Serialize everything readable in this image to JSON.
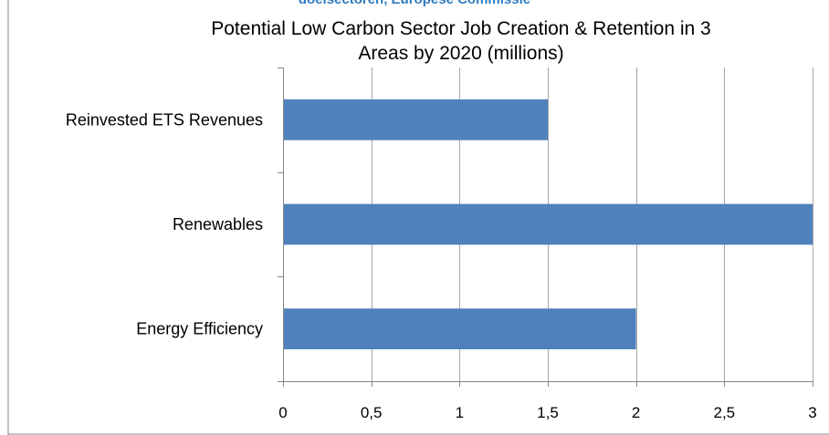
{
  "caption": "doelsectoren, Europese Commissie",
  "chart_data": {
    "type": "bar",
    "orientation": "horizontal",
    "title_lines": [
      "Potential Low Carbon Sector Job Creation & Retention in 3",
      "Areas by 2020 (millions)"
    ],
    "categories": [
      "Reinvested ETS Revenues",
      "Renewables",
      "Energy Efficiency"
    ],
    "values": [
      1.5,
      3,
      2
    ],
    "xlim": [
      0,
      3
    ],
    "ticks": [
      0,
      0.5,
      1,
      1.5,
      2,
      2.5,
      3
    ],
    "tick_labels": [
      "0",
      "0,5",
      "1",
      "1,5",
      "2",
      "2,5",
      "3"
    ],
    "grid": true,
    "legend": "none",
    "bar_color": "#4f81bd",
    "grid_color": "#a6a6a6"
  }
}
